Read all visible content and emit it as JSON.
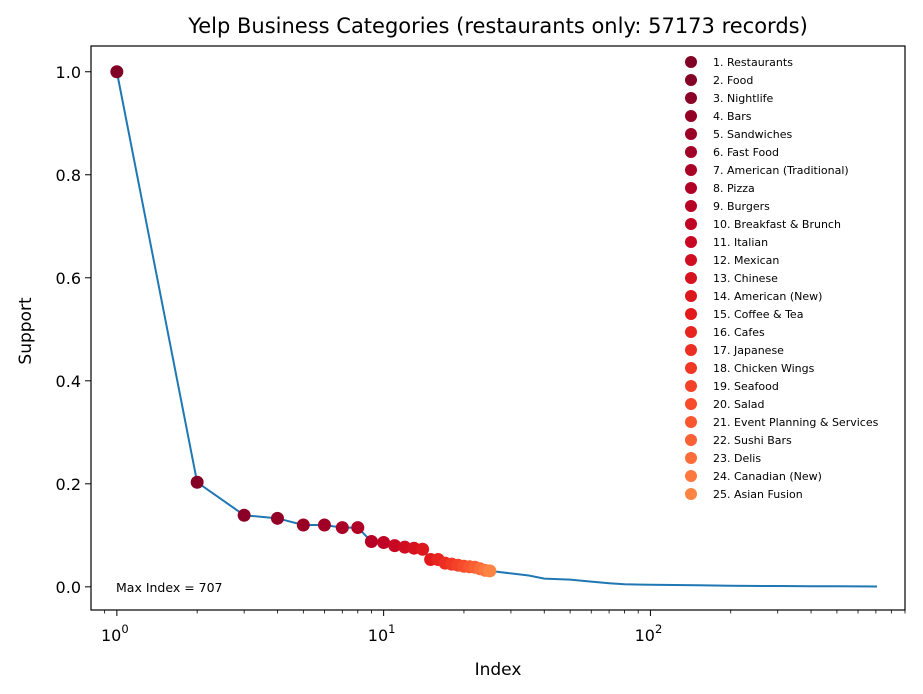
{
  "chart_data": {
    "type": "line",
    "title": "Yelp Business Categories (restaurants only: 57173 records)",
    "xlabel": "Index",
    "ylabel": "Support",
    "xscale": "log",
    "xlim": [
      0.8,
      900
    ],
    "ylim": [
      -0.045,
      1.05
    ],
    "x_ticks": [
      {
        "value": 1,
        "base": "10",
        "exp": "0"
      },
      {
        "value": 10,
        "base": "10",
        "exp": "1"
      },
      {
        "value": 100,
        "base": "10",
        "exp": "2"
      }
    ],
    "y_ticks": [
      {
        "value": 0.0,
        "label": "0.0"
      },
      {
        "value": 0.2,
        "label": "0.2"
      },
      {
        "value": 0.4,
        "label": "0.4"
      },
      {
        "value": 0.6,
        "label": "0.6"
      },
      {
        "value": 0.8,
        "label": "0.8"
      },
      {
        "value": 1.0,
        "label": "1.0"
      }
    ],
    "line_color": "#1f77b4",
    "grid": false,
    "legend_position": "upper right",
    "annotation": "Max Index = 707",
    "curve": {
      "x": [
        1,
        2,
        3,
        4,
        5,
        6,
        7,
        8,
        9,
        10,
        11,
        12,
        13,
        14,
        15,
        16,
        17,
        18,
        19,
        20,
        21,
        22,
        23,
        24,
        25,
        30,
        35,
        40,
        50,
        60,
        70,
        80,
        100,
        150,
        200,
        300,
        400,
        500,
        600,
        707
      ],
      "y": [
        1.0,
        0.203,
        0.139,
        0.133,
        0.12,
        0.12,
        0.115,
        0.115,
        0.088,
        0.086,
        0.08,
        0.077,
        0.075,
        0.073,
        0.053,
        0.053,
        0.046,
        0.044,
        0.042,
        0.04,
        0.039,
        0.038,
        0.035,
        0.032,
        0.031,
        0.026,
        0.022,
        0.016,
        0.014,
        0.01,
        0.007,
        0.005,
        0.004,
        0.003,
        0.002,
        0.0015,
        0.0012,
        0.001,
        0.0008,
        0.0005
      ]
    },
    "points": [
      {
        "x": 1,
        "y": 1.0,
        "label": "1. Restaurants",
        "color": "#800026"
      },
      {
        "x": 2,
        "y": 0.203,
        "label": "2. Food",
        "color": "#850026"
      },
      {
        "x": 3,
        "y": 0.139,
        "label": "3. Nightlife",
        "color": "#8b0026"
      },
      {
        "x": 4,
        "y": 0.133,
        "label": "4. Bars",
        "color": "#930026"
      },
      {
        "x": 5,
        "y": 0.12,
        "label": "5. Sandwiches",
        "color": "#9a0026"
      },
      {
        "x": 6,
        "y": 0.12,
        "label": "6. Fast Food",
        "color": "#a10026"
      },
      {
        "x": 7,
        "y": 0.115,
        "label": "7. American (Traditional)",
        "color": "#a90026"
      },
      {
        "x": 8,
        "y": 0.115,
        "label": "8. Pizza",
        "color": "#b10026"
      },
      {
        "x": 9,
        "y": 0.088,
        "label": "9. Burgers",
        "color": "#b80026"
      },
      {
        "x": 10,
        "y": 0.086,
        "label": "10. Breakfast & Brunch",
        "color": "#c00225"
      },
      {
        "x": 11,
        "y": 0.08,
        "label": "11. Italian",
        "color": "#c80723"
      },
      {
        "x": 12,
        "y": 0.077,
        "label": "12. Mexican",
        "color": "#d00d21"
      },
      {
        "x": 13,
        "y": 0.075,
        "label": "13. Chinese",
        "color": "#d7121f"
      },
      {
        "x": 14,
        "y": 0.073,
        "label": "14. American (New)",
        "color": "#dd171e"
      },
      {
        "x": 15,
        "y": 0.053,
        "label": "15. Coffee & Tea",
        "color": "#e31a1c"
      },
      {
        "x": 16,
        "y": 0.053,
        "label": "16. Cafes",
        "color": "#e8241f"
      },
      {
        "x": 17,
        "y": 0.046,
        "label": "17. Japanese",
        "color": "#ec2e22"
      },
      {
        "x": 18,
        "y": 0.044,
        "label": "18. Chicken Wings",
        "color": "#f03825"
      },
      {
        "x": 19,
        "y": 0.042,
        "label": "19. Seafood",
        "color": "#f44228"
      },
      {
        "x": 20,
        "y": 0.04,
        "label": "20. Salad",
        "color": "#f74c2b"
      },
      {
        "x": 21,
        "y": 0.039,
        "label": "21. Event Planning & Services",
        "color": "#fa5630"
      },
      {
        "x": 22,
        "y": 0.038,
        "label": "22. Sushi Bars",
        "color": "#fc6034"
      },
      {
        "x": 23,
        "y": 0.035,
        "label": "23. Delis",
        "color": "#fd6c39"
      },
      {
        "x": 24,
        "y": 0.032,
        "label": "24. Canadian (New)",
        "color": "#fd783e"
      },
      {
        "x": 25,
        "y": 0.031,
        "label": "25. Asian Fusion",
        "color": "#fd8443"
      }
    ]
  }
}
